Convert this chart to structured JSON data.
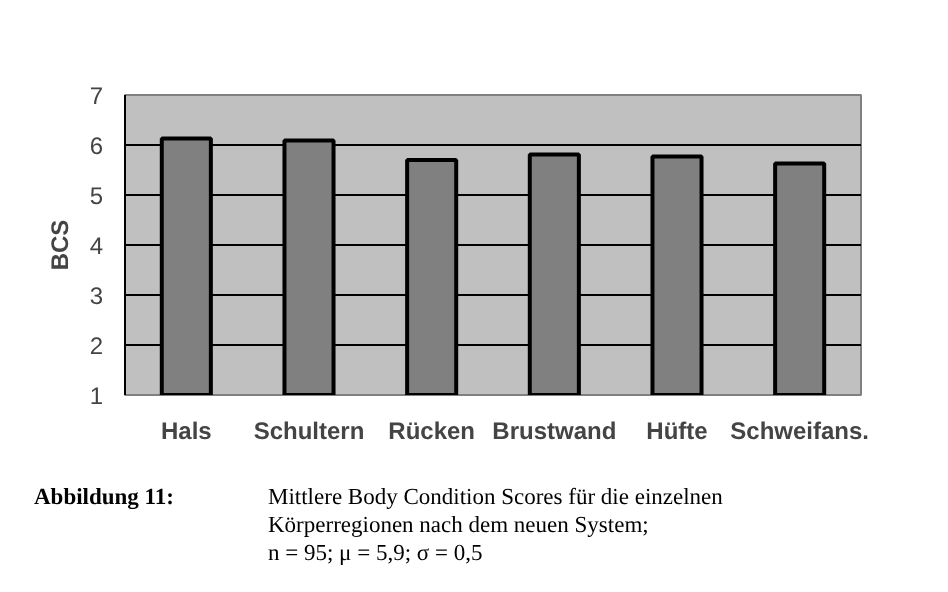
{
  "chart_data": {
    "type": "bar",
    "categories": [
      "Hals",
      "Schultern",
      "Rücken",
      "Brustwand",
      "Hüfte",
      "Schweifans."
    ],
    "values": [
      6.13,
      6.09,
      5.7,
      5.81,
      5.77,
      5.63
    ],
    "color": "#808080",
    "ylabel": "BCS",
    "ylim": [
      1,
      7
    ],
    "yticks": [
      1,
      2,
      3,
      4,
      5,
      6,
      7
    ],
    "grid": "y",
    "legend": false,
    "annotations": [
      "Abbildung 11:",
      "Mittlere Body Condition Scores für die einzelnen",
      "Körperregionen nach dem neuen System;",
      "n = 95; μ = 5,9; σ = 0,5"
    ]
  }
}
